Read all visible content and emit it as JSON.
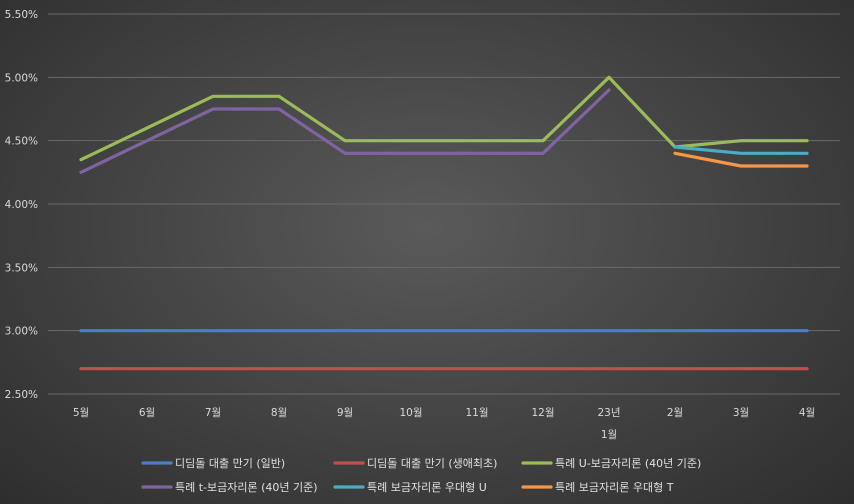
{
  "chart_data": {
    "type": "line",
    "categories": [
      "5월",
      "6월",
      "7월",
      "8월",
      "9월",
      "10월",
      "11월",
      "12월",
      "23년\n1월",
      "2월",
      "3월",
      "4월"
    ],
    "ylim": [
      0.025,
      0.055
    ],
    "y_ticks": [
      "2.50%",
      "3.00%",
      "3.50%",
      "4.00%",
      "4.50%",
      "5.00%",
      "5.50%"
    ],
    "grid": true,
    "legend_position": "bottom",
    "series": [
      {
        "name": "디딤돌 대출 만기 (일반)",
        "color": "#4a7ec6",
        "values": [
          0.03,
          0.03,
          0.03,
          0.03,
          0.03,
          0.03,
          0.03,
          0.03,
          0.03,
          0.03,
          0.03,
          0.03
        ]
      },
      {
        "name": "디딤돌 대출 만기 (생애최초)",
        "color": "#c0504d",
        "values": [
          0.027,
          0.027,
          0.027,
          0.027,
          0.027,
          0.027,
          0.027,
          0.027,
          0.027,
          0.027,
          0.027,
          0.027
        ]
      },
      {
        "name": "특례 U-보금자리론 (40년 기준)",
        "color": "#9bbb59",
        "values": [
          0.0435,
          0.046,
          0.0485,
          0.0485,
          0.045,
          0.045,
          0.045,
          0.045,
          0.05,
          0.0445,
          0.045,
          0.045
        ]
      },
      {
        "name": "특례 t-보금자리론 (40년 기준)",
        "color": "#8064a2",
        "values": [
          0.0425,
          0.045,
          0.0475,
          0.0475,
          0.044,
          0.044,
          0.044,
          0.044,
          0.049,
          null,
          null,
          null
        ]
      },
      {
        "name": "특례 보금자리론 우대형 U",
        "color": "#4bacc6",
        "values": [
          null,
          null,
          null,
          null,
          null,
          null,
          null,
          null,
          null,
          0.0445,
          0.044,
          0.044
        ]
      },
      {
        "name": "특례 보금자리론 우대형 T",
        "color": "#f79646",
        "values": [
          null,
          null,
          null,
          null,
          null,
          null,
          null,
          null,
          null,
          0.044,
          0.043,
          0.043
        ]
      }
    ]
  }
}
